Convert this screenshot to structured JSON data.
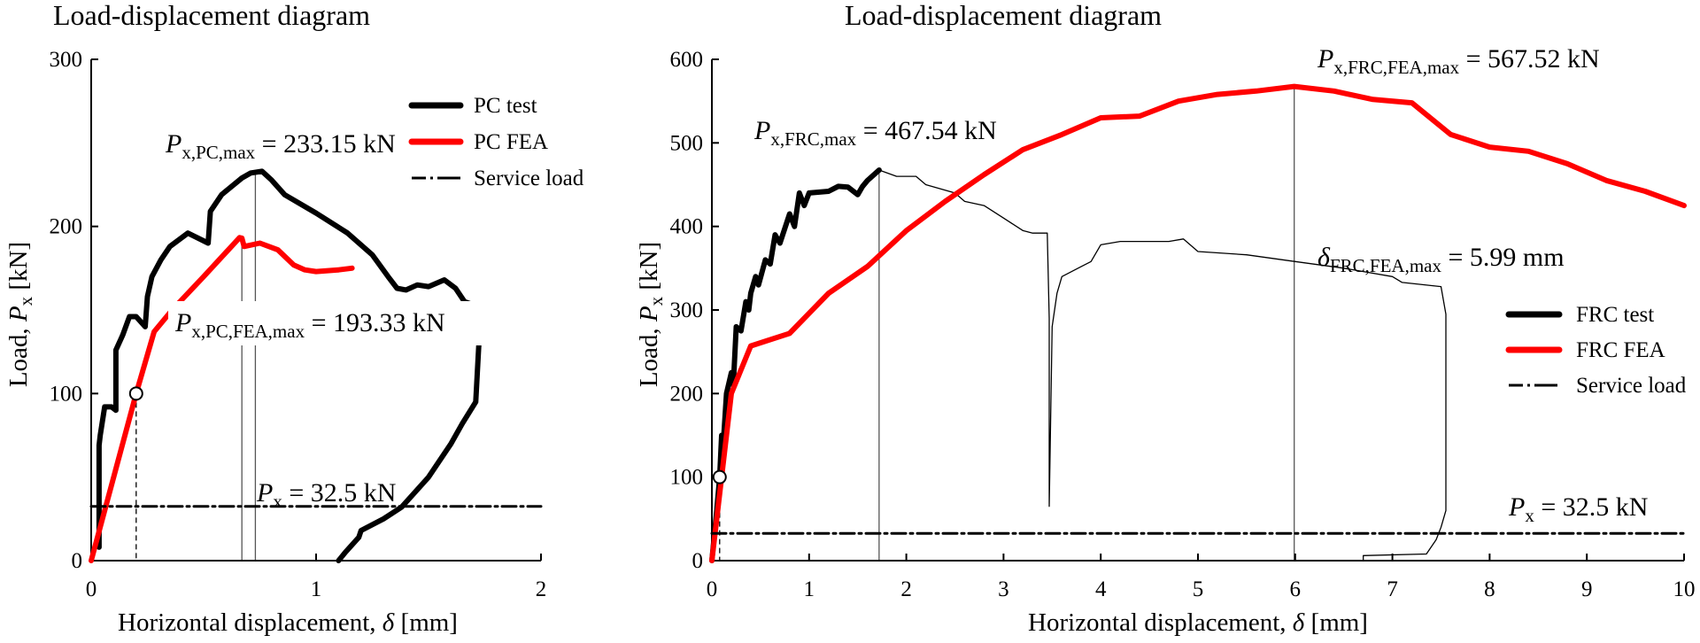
{
  "chart_data": [
    {
      "type": "line",
      "title": "Load-displacement diagram",
      "xlabel_prefix": "Horizontal displacement, ",
      "xlabel_symbol": "δ",
      "xlabel_unit": " [mm]",
      "ylabel_prefix": "Load, ",
      "ylabel_symbol": "P",
      "ylabel_sub": "x",
      "ylabel_unit": " [kN]",
      "xlim": [
        0,
        2
      ],
      "ylim": [
        0,
        300
      ],
      "xticks": [
        0,
        1,
        2
      ],
      "yticks": [
        0,
        100,
        200,
        300
      ],
      "grid": false,
      "legend_position": "top-right",
      "legend": [
        "PC test",
        "PC FEA",
        "Service load"
      ],
      "colors": {
        "test": "#000000",
        "fea": "#ff0000",
        "service": "#000000"
      },
      "series": [
        {
          "name": "PC test",
          "x": [
            0.035,
            0.035,
            0.04,
            0.06,
            0.09,
            0.11,
            0.11,
            0.14,
            0.17,
            0.2,
            0.24,
            0.25,
            0.27,
            0.31,
            0.35,
            0.43,
            0.52,
            0.53,
            0.58,
            0.67,
            0.71,
            0.76,
            0.8,
            0.86,
            1.0,
            1.14,
            1.25,
            1.32,
            1.36,
            1.4,
            1.45,
            1.5,
            1.57,
            1.62,
            1.66,
            1.72,
            1.73,
            1.71,
            1.65,
            1.6,
            1.5,
            1.38,
            1.3,
            1.2,
            1.19,
            1.13,
            1.1
          ],
          "y": [
            8,
            69,
            75,
            92,
            92,
            90,
            126,
            135,
            146,
            146,
            140,
            158,
            170,
            180,
            188,
            196,
            190,
            209,
            219,
            229,
            232,
            233,
            228,
            219,
            208,
            196,
            183,
            170,
            163,
            162,
            165,
            164,
            168,
            163,
            155,
            152,
            145,
            95,
            82,
            70,
            50,
            32,
            25,
            18,
            14,
            5,
            0
          ]
        },
        {
          "name": "PC FEA",
          "x": [
            0,
            0.2,
            0.28,
            0.36,
            0.5,
            0.66,
            0.67,
            0.68,
            0.75,
            0.83,
            0.9,
            0.95,
            1.0,
            1.1,
            1.16
          ],
          "y": [
            0,
            100,
            137,
            150,
            170,
            193.33,
            193,
            188,
            190,
            186,
            177,
            174,
            173,
            174,
            175
          ]
        },
        {
          "name": "Service load",
          "x": [
            0,
            2
          ],
          "y": [
            32.5,
            32.5
          ]
        }
      ],
      "markers": [
        {
          "x": 0.2,
          "y": 100
        }
      ],
      "guide_lines": [
        {
          "x": 0.67,
          "y": 193.33
        },
        {
          "x": 0.73,
          "y": 233.15
        }
      ],
      "dashed_guide": {
        "x": 0.2,
        "y": 100
      },
      "annotations": {
        "pc_max": {
          "sym": "P",
          "sub": "x,PC,max",
          "text": " = 233.15 kN"
        },
        "pc_fea_max": {
          "sym": "P",
          "sub": "x,PC,FEA,max",
          "text": " = 193.33 kN"
        },
        "service": {
          "sym": "P",
          "sub": "x",
          "text": " = 32.5 kN"
        }
      }
    },
    {
      "type": "line",
      "title": "Load-displacement diagram",
      "xlabel_prefix": "Horizontal displacement, ",
      "xlabel_symbol": "δ",
      "xlabel_unit": " [mm]",
      "ylabel_prefix": "Load, ",
      "ylabel_symbol": "P",
      "ylabel_sub": "x",
      "ylabel_unit": " [kN]",
      "xlim": [
        0,
        10
      ],
      "ylim": [
        0,
        600
      ],
      "xticks": [
        0,
        1,
        2,
        3,
        4,
        5,
        6,
        7,
        8,
        9,
        10
      ],
      "yticks": [
        0,
        100,
        200,
        300,
        400,
        500,
        600
      ],
      "grid": false,
      "legend_position": "center-right",
      "legend": [
        "FRC test",
        "FRC FEA",
        "Service load"
      ],
      "colors": {
        "test": "#000000",
        "fea": "#ff0000",
        "service": "#000000"
      },
      "series": [
        {
          "name": "FRC test",
          "x": [
            0,
            0.05,
            0.08,
            0.1,
            0.12,
            0.15,
            0.2,
            0.22,
            0.25,
            0.3,
            0.35,
            0.38,
            0.4,
            0.45,
            0.48,
            0.55,
            0.6,
            0.65,
            0.7,
            0.8,
            0.85,
            0.9,
            0.95,
            1.0,
            1.2,
            1.3,
            1.4,
            1.5,
            1.55,
            1.6,
            1.72
          ],
          "y": [
            0,
            60,
            100,
            150,
            145,
            200,
            225,
            210,
            280,
            275,
            310,
            300,
            320,
            340,
            330,
            360,
            355,
            390,
            380,
            415,
            400,
            440,
            425,
            440,
            442,
            448,
            447,
            438,
            448,
            455,
            467.54
          ]
        },
        {
          "name": "FRC test (post-peak)",
          "x": [
            1.72,
            1.9,
            2.1,
            2.2,
            2.5,
            2.6,
            2.8,
            3.0,
            3.2,
            3.3,
            3.45,
            3.47,
            3.47,
            3.5,
            3.55,
            3.6,
            3.8,
            3.9,
            4.0,
            4.2,
            4.7,
            4.85,
            5.0,
            5.5,
            6.0,
            6.5,
            7.0,
            7.1,
            7.5,
            7.55,
            7.55,
            7.5,
            7.45,
            7.35,
            6.7,
            6.7
          ],
          "y": [
            467.54,
            460,
            460,
            450,
            440,
            430,
            425,
            410,
            395,
            392,
            392,
            290,
            65,
            280,
            320,
            340,
            352,
            358,
            378,
            382,
            382,
            385,
            370,
            366,
            358,
            350,
            340,
            333,
            328,
            295,
            60,
            40,
            25,
            8,
            6,
            0
          ]
        },
        {
          "name": "FRC FEA",
          "x": [
            0,
            0.1,
            0.2,
            0.4,
            0.8,
            1.2,
            1.6,
            2,
            2.4,
            2.8,
            3.2,
            3.6,
            4,
            4.4,
            4.8,
            5.2,
            5.6,
            5.99,
            6.4,
            6.8,
            7.2,
            7.6,
            8,
            8.4,
            8.8,
            9.2,
            9.6,
            10
          ],
          "y": [
            0,
            100,
            200,
            257,
            272,
            320,
            352,
            395,
            430,
            462,
            492,
            510,
            530,
            532,
            550,
            558,
            562,
            567.52,
            562,
            552,
            548,
            510,
            495,
            490,
            475,
            455,
            442,
            425
          ]
        },
        {
          "name": "Service load",
          "x": [
            0,
            10
          ],
          "y": [
            32.5,
            32.5
          ]
        }
      ],
      "markers": [
        {
          "x": 0.08,
          "y": 100
        }
      ],
      "guide_lines": [
        {
          "x": 1.72,
          "y": 467.54
        },
        {
          "x": 5.99,
          "y": 567.52
        }
      ],
      "dashed_guide": {
        "x": 0.08,
        "y": 100
      },
      "annotations": {
        "frc_max": {
          "sym": "P",
          "sub": "x,FRC,max",
          "text": " = 467.54 kN"
        },
        "frc_fea_max": {
          "sym": "P",
          "sub": "x,FRC,FEA,max",
          "text": " = 567.52 kN"
        },
        "frc_fea_disp": {
          "sym": "δ",
          "sub": "FRC,FEA,max",
          "text": " = 5.99 mm"
        },
        "service": {
          "sym": "P",
          "sub": "x",
          "text": " = 32.5 kN"
        }
      }
    }
  ]
}
